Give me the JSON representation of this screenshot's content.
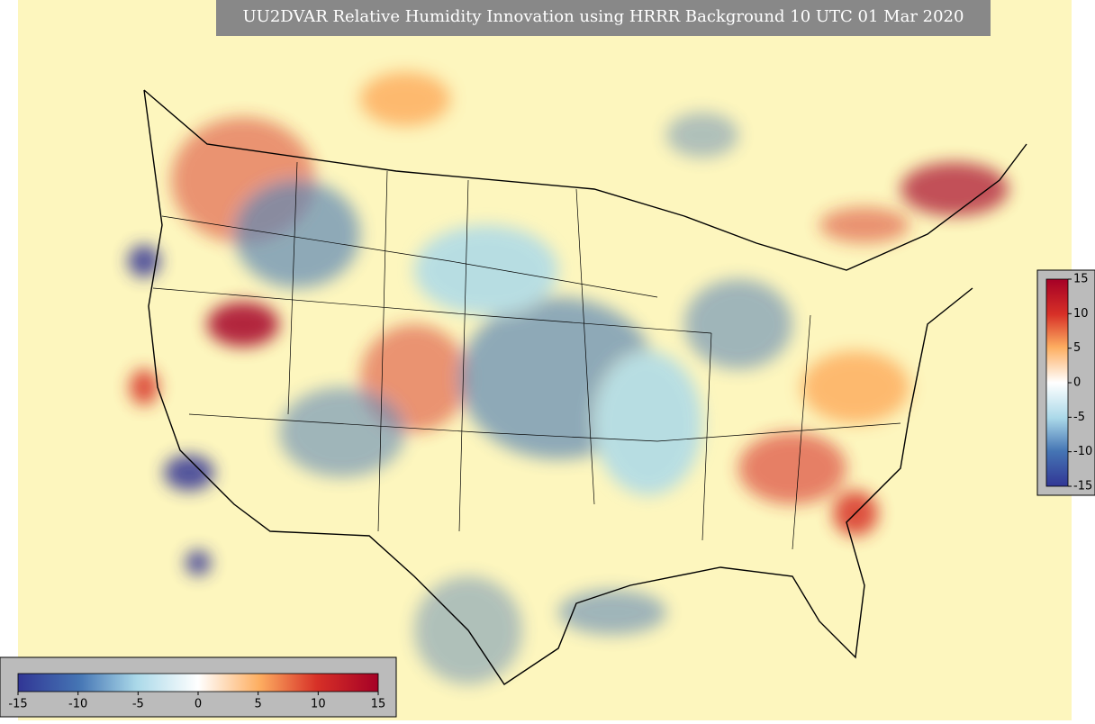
{
  "title": "UU2DVAR Relative Humidity Innovation using HRRR Background 10 UTC 01 Mar 2020",
  "colorbar_horizontal": {
    "lim": [
      -15,
      15
    ],
    "ticks": [
      -15,
      -10,
      -5,
      0,
      5,
      10,
      15
    ]
  },
  "colorbar_vertical": {
    "lim": [
      -15,
      15
    ],
    "ticks": [
      15,
      10,
      5,
      0,
      -5,
      -10,
      -15
    ]
  }
}
